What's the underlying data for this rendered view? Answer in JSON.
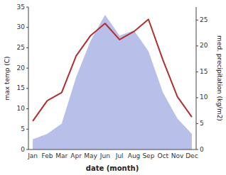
{
  "chart_data": {
    "type": "line",
    "categories": [
      "Jan",
      "Feb",
      "Mar",
      "Apr",
      "May",
      "Jun",
      "Jul",
      "Aug",
      "Sep",
      "Oct",
      "Nov",
      "Dec"
    ],
    "xlabel": "date (month)",
    "ylabel": "max temp (C)",
    "y2label": "med. precipitation (kg/m2)",
    "series": [
      {
        "type": "area",
        "axis": "y2",
        "color": "#b8bfe8",
        "values": [
          2,
          3,
          5,
          14,
          21,
          26,
          22,
          23,
          19,
          11,
          6,
          3
        ]
      },
      {
        "type": "line",
        "color": "#b03030",
        "values": [
          7,
          12,
          14,
          23,
          28,
          31,
          27,
          29,
          32,
          22,
          13,
          8
        ]
      }
    ],
    "ylim": [
      0,
      35
    ],
    "yticks": [
      0,
      5,
      10,
      15,
      20,
      25,
      30,
      35
    ],
    "y2lim": [
      0,
      27.5
    ],
    "y2ticks": [
      0,
      5,
      10,
      15,
      20,
      25
    ],
    "grid": false
  }
}
